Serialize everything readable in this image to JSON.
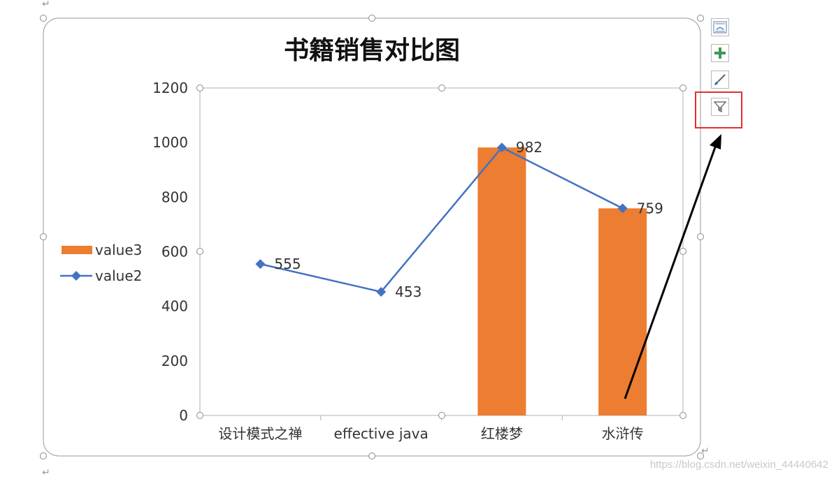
{
  "chart_data": {
    "type": "bar+line",
    "title": "书籍销售对比图",
    "categories": [
      "设计模式之禅",
      "effective java",
      "红楼梦",
      "水浒传"
    ],
    "series": [
      {
        "name": "value3",
        "kind": "bar",
        "values": [
          0,
          0,
          982,
          759
        ]
      },
      {
        "name": "value2",
        "kind": "line",
        "values": [
          555,
          453,
          982,
          759
        ]
      }
    ],
    "data_labels": [
      555,
      453,
      982,
      759
    ],
    "yticks": [
      0,
      200,
      400,
      600,
      800,
      1000,
      1200
    ],
    "ylim": [
      0,
      1200
    ],
    "legend_position": "left",
    "colors": {
      "bar": "#ED7D31",
      "line": "#4472C4"
    }
  },
  "sidebar_buttons": [
    {
      "icon": "chart-layout-icon"
    },
    {
      "icon": "chart-elements-plus-icon"
    },
    {
      "icon": "chart-styles-brush-icon"
    },
    {
      "icon": "chart-filter-icon"
    }
  ],
  "watermark": "https://blog.csdn.net/weixin_44440642"
}
